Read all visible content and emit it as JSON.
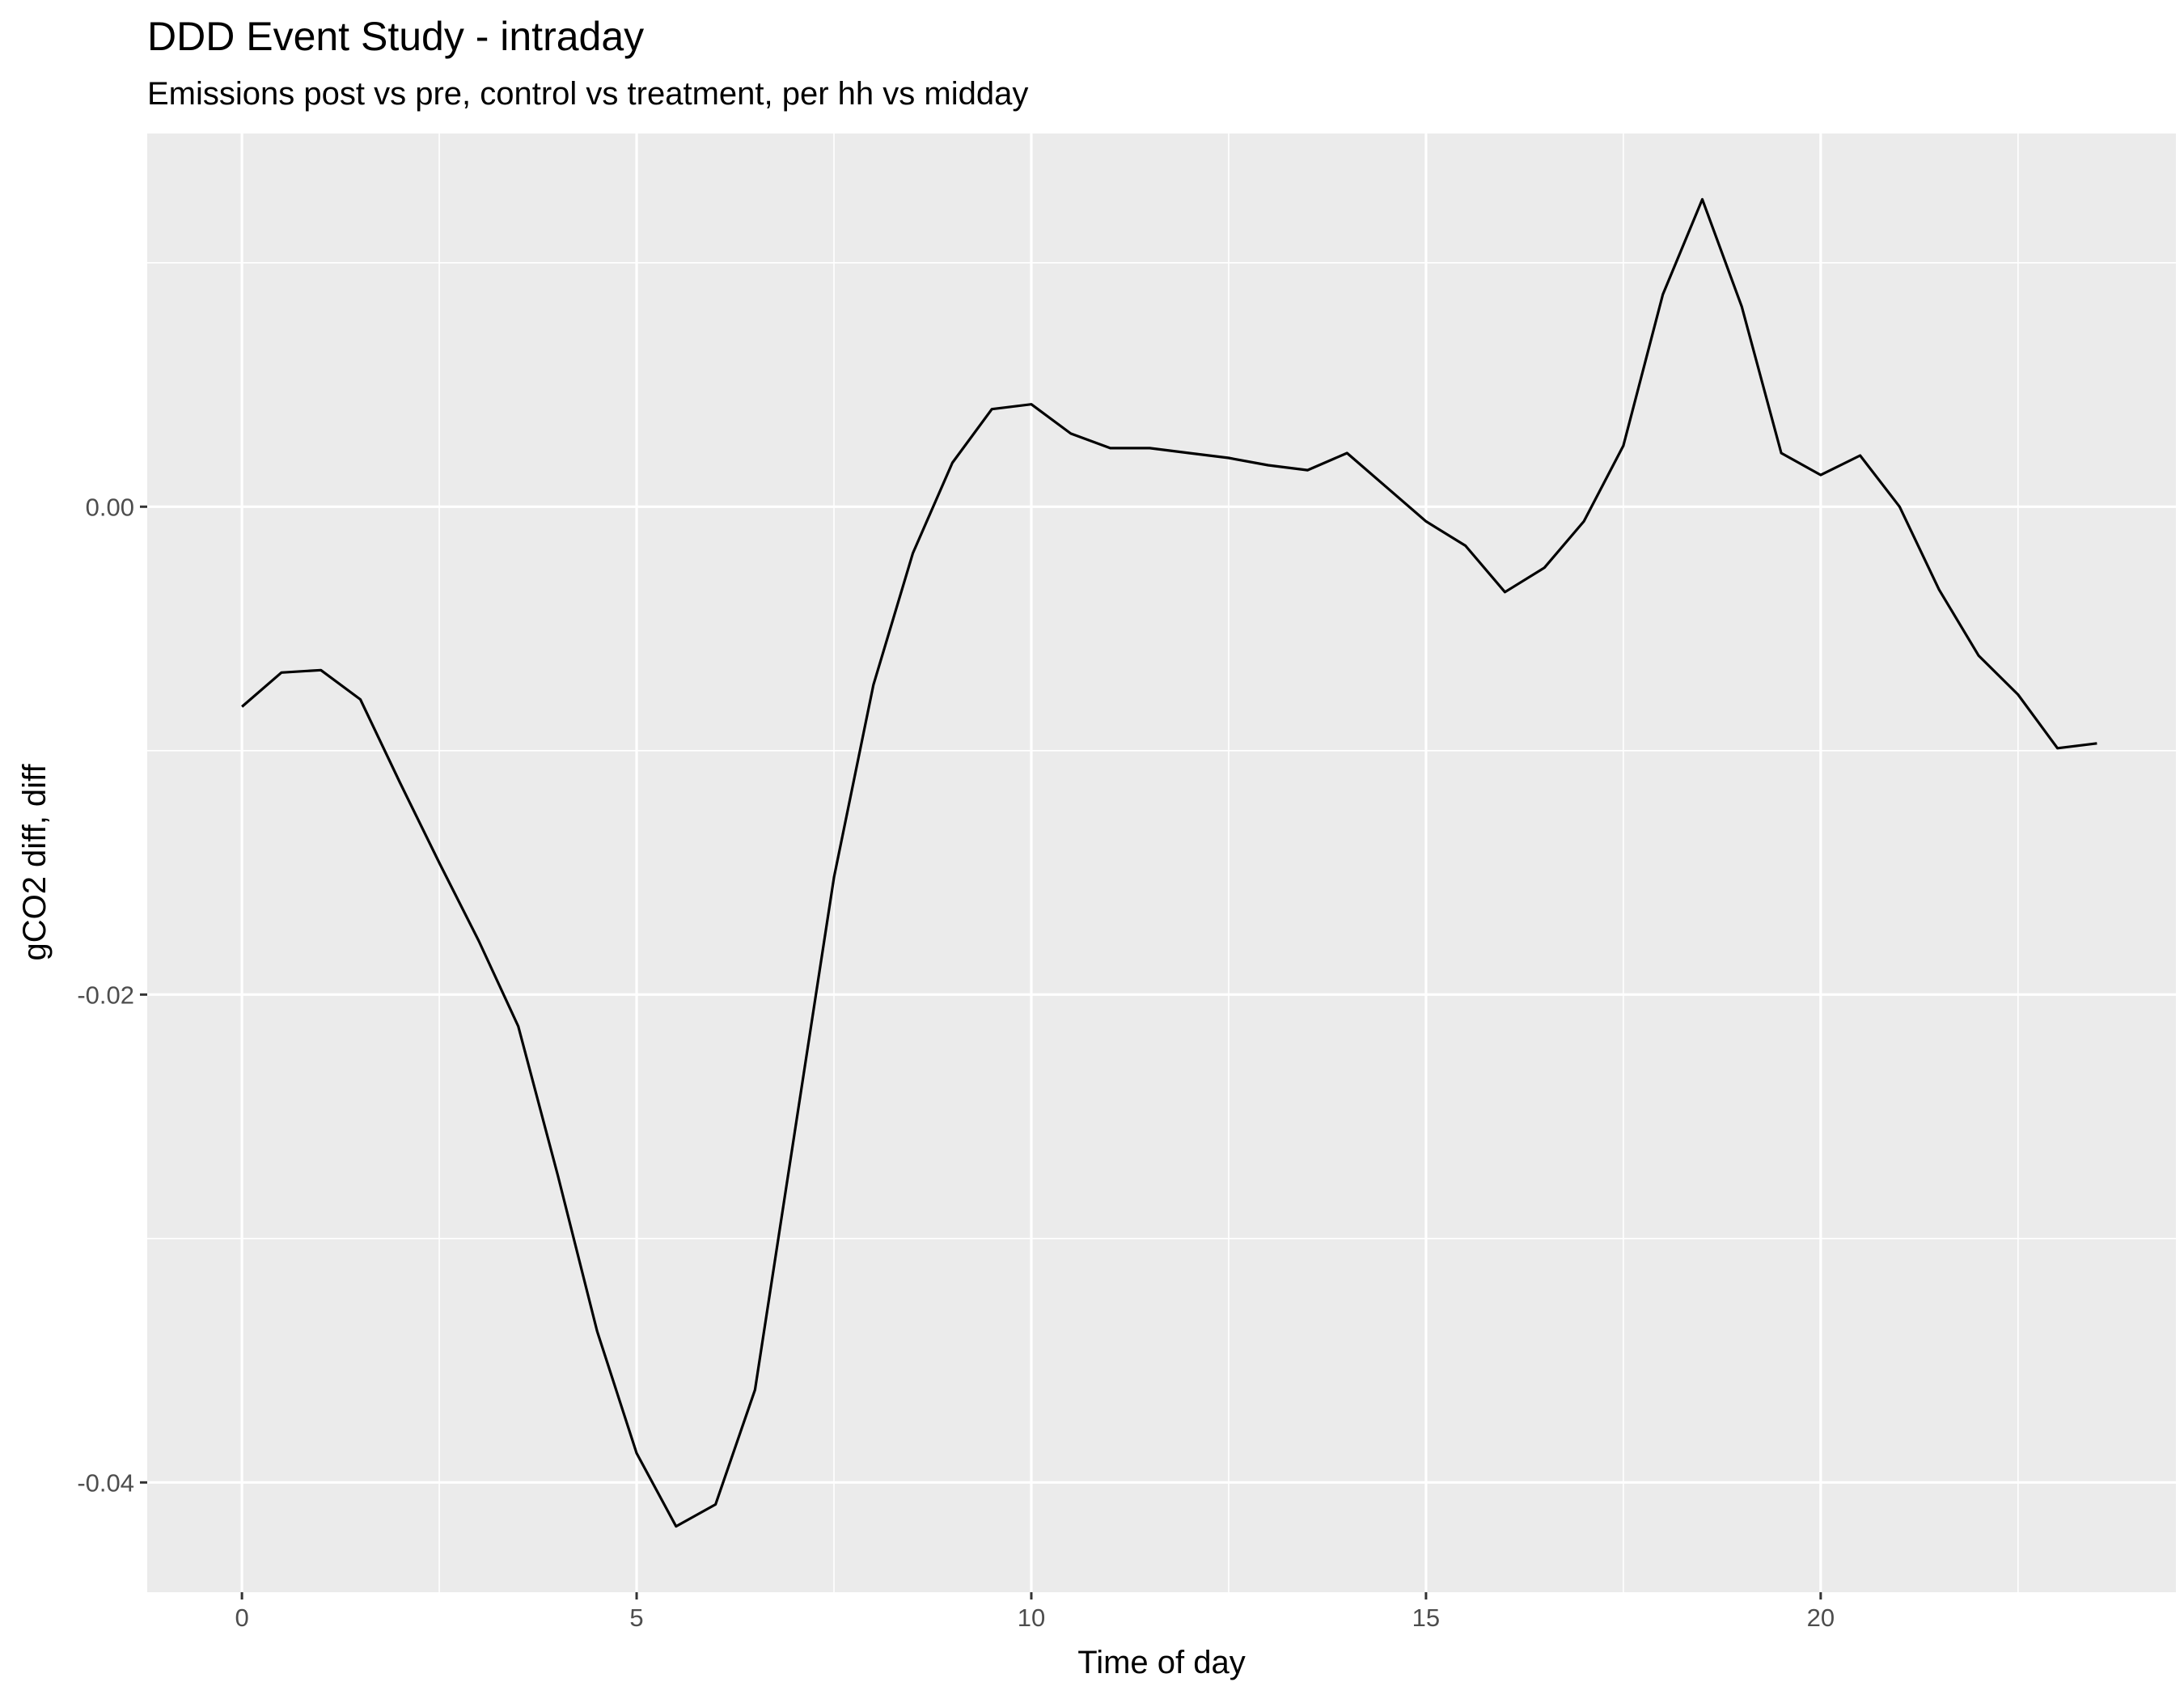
{
  "chart_data": {
    "type": "line",
    "title": "DDD Event Study - intraday",
    "subtitle": "Emissions post vs pre, control vs treatment, per hh vs midday",
    "xlabel": "Time of day",
    "ylabel": "gCO2 diff, diff",
    "xlim": [
      -1.2,
      24.5
    ],
    "ylim": [
      -0.0445,
      0.0153
    ],
    "x_ticks": [
      0,
      5,
      10,
      15,
      20
    ],
    "x_tick_labels": [
      "0",
      "5",
      "10",
      "15",
      "20"
    ],
    "y_ticks": [
      0.0,
      -0.02,
      -0.04
    ],
    "y_tick_labels": [
      "0.00",
      "-0.02",
      "-0.04"
    ],
    "grid": true,
    "legend": "none",
    "colors": {
      "panel": "#ebebeb",
      "grid": "#ffffff",
      "line": "#000000"
    },
    "series": [
      {
        "x": [
          0,
          0.5,
          1,
          1.5,
          2,
          2.5,
          3,
          3.5,
          4,
          4.5,
          5,
          5.5,
          6,
          6.5,
          7,
          7.5,
          8,
          8.5,
          9,
          9.5,
          10,
          10.5,
          11,
          11.5,
          12,
          12.5,
          13,
          13.5,
          14,
          14.5,
          15,
          15.5,
          16,
          16.5,
          17,
          17.5,
          18,
          18.5,
          19,
          19.5,
          20,
          20.5,
          21,
          21.5,
          22,
          22.5,
          23,
          23.5
        ],
        "values": [
          -0.0082,
          -0.0068,
          -0.0067,
          -0.0079,
          -0.0113,
          -0.0146,
          -0.0178,
          -0.0213,
          -0.0274,
          -0.0338,
          -0.0388,
          -0.0418,
          -0.0409,
          -0.0362,
          -0.0257,
          -0.0152,
          -0.0073,
          -0.0019,
          0.0018,
          0.004,
          0.0042,
          0.003,
          0.0024,
          0.0024,
          0.0022,
          0.002,
          0.0017,
          0.0015,
          0.0022,
          0.0008,
          -0.0006,
          -0.0016,
          -0.0035,
          -0.0025,
          -0.0006,
          0.0025,
          0.0087,
          0.0126,
          0.0082,
          0.0022,
          0.0013,
          0.0021,
          0.0,
          -0.0034,
          -0.0061,
          -0.0077,
          -0.0099,
          -0.0097
        ]
      }
    ]
  }
}
